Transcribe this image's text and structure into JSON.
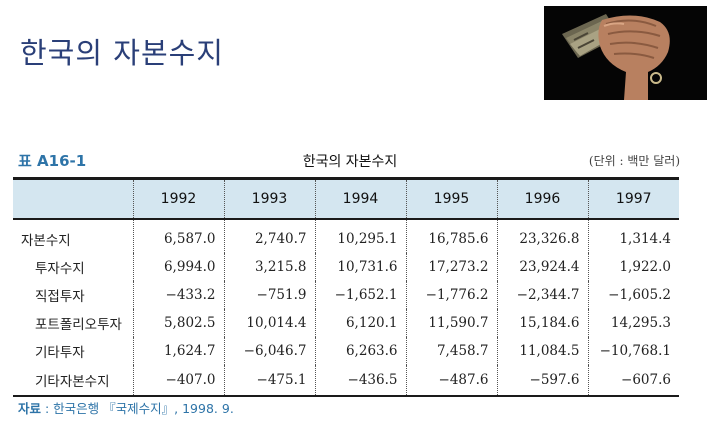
{
  "page_title": "한국의 자본수지",
  "table_label": "표 A16-1",
  "table_title": "한국의 자본수지",
  "unit": "(단위 : 백만 달러)",
  "columns": [
    "1992",
    "1993",
    "1994",
    "1995",
    "1996",
    "1997"
  ],
  "rows": [
    {
      "label": "자본수지",
      "values": [
        "6,587.0",
        "2,740.7",
        "10,295.1",
        "16,785.6",
        "23,326.8",
        "1,314.4"
      ]
    },
    {
      "label": "투자수지",
      "values": [
        "6,994.0",
        "3,215.8",
        "10,731.6",
        "17,273.2",
        "23,924.4",
        "1,922.0"
      ]
    },
    {
      "label": "직접투자",
      "values": [
        "−433.2",
        "−751.9",
        "−1,652.1",
        "−1,776.2",
        "−2,344.7",
        "−1,605.2"
      ]
    },
    {
      "label": "포트폴리오투자",
      "values": [
        "5,802.5",
        "10,014.4",
        "6,120.1",
        "11,590.7",
        "15,184.6",
        "14,295.3"
      ]
    },
    {
      "label": "기타투자",
      "values": [
        "1,624.7",
        "−6,046.7",
        "6,263.6",
        "7,458.7",
        "11,084.5",
        "−10,768.1"
      ]
    },
    {
      "label": "기타자본수지",
      "values": [
        "−407.0",
        "−475.1",
        "−436.5",
        "−487.6",
        "−597.6",
        "−607.6"
      ]
    }
  ],
  "source": {
    "label": "자료",
    "text": ": 한국은행 『국제수지』, 1998. 9."
  }
}
